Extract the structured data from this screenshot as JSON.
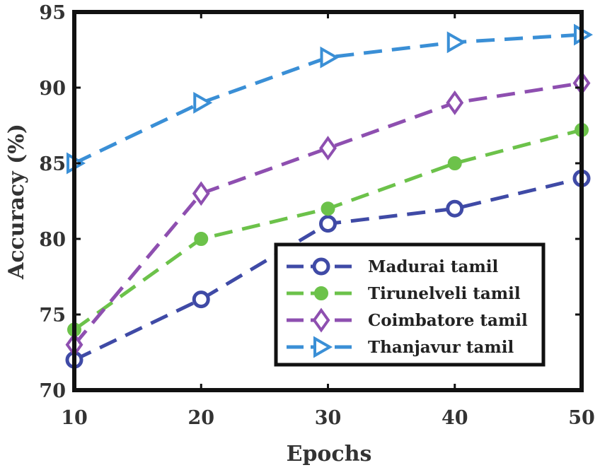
{
  "chart_data": {
    "type": "line",
    "title": "",
    "xlabel": "Epochs",
    "ylabel": "Accuracy (%)",
    "x": [
      10,
      20,
      30,
      40,
      50
    ],
    "xlim": [
      10,
      50
    ],
    "ylim": [
      70,
      95
    ],
    "xticks": [
      10,
      20,
      30,
      40,
      50
    ],
    "yticks": [
      70,
      75,
      80,
      85,
      90,
      95
    ],
    "grid": false,
    "legend_position": "bottom-right",
    "series": [
      {
        "name": "Madurai tamil",
        "values": [
          72,
          76,
          81,
          82,
          84
        ],
        "color": "#3f4aa6",
        "marker": "circle"
      },
      {
        "name": "Tirunelveli tamil",
        "values": [
          74,
          80,
          82,
          85,
          87.2
        ],
        "color": "#6cc24a",
        "marker": "filled-circle"
      },
      {
        "name": "Coimbatore tamil",
        "values": [
          73,
          83,
          86,
          89,
          90.3
        ],
        "color": "#8e4fb0",
        "marker": "diamond"
      },
      {
        "name": "Thanjavur tamil",
        "values": [
          85,
          89,
          92,
          93,
          93.5
        ],
        "color": "#3a8fd6",
        "marker": "triangle-right"
      }
    ]
  }
}
